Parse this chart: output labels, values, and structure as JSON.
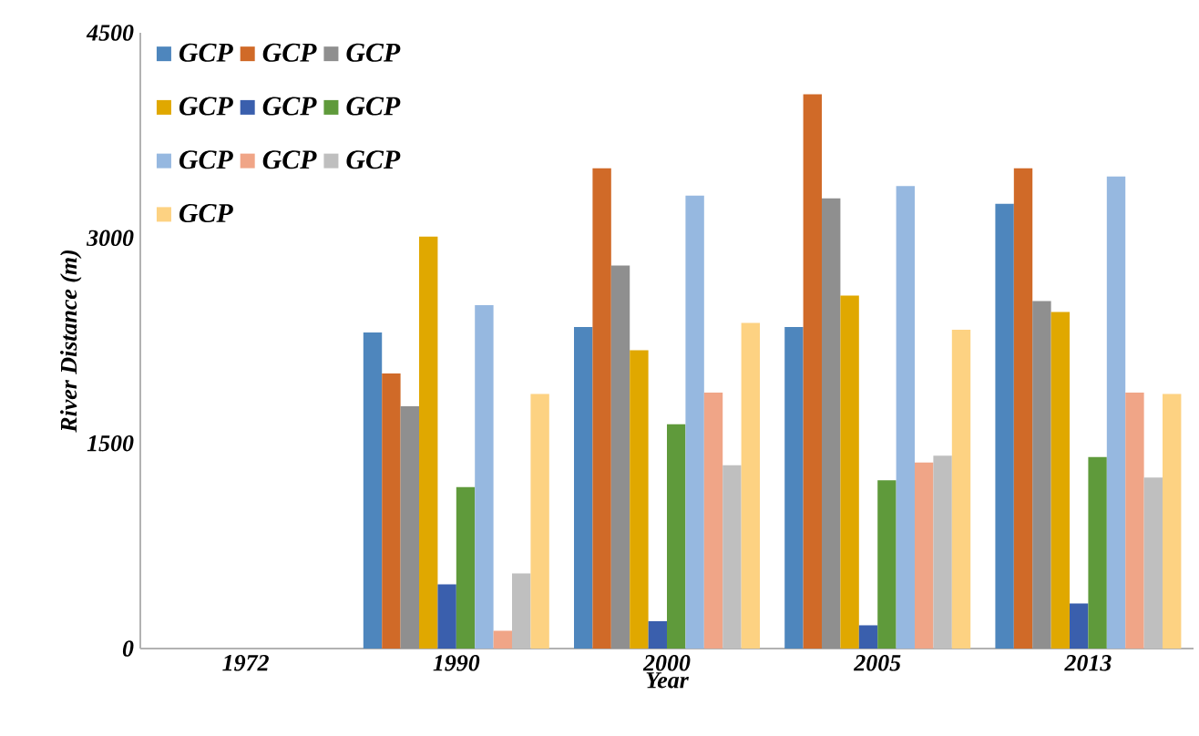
{
  "chart_data": {
    "type": "bar",
    "xlabel": "Year",
    "ylabel": "River Distance (m)",
    "categories": [
      "1972",
      "1990",
      "2000",
      "2005",
      "2013"
    ],
    "ylim": [
      0,
      4500
    ],
    "yticks": [
      0,
      1500,
      3000,
      4500
    ],
    "legend": "top left",
    "series": [
      {
        "name": "GCP",
        "color": "#4e86bd",
        "values": [
          null,
          2310,
          2350,
          2350,
          3250
        ]
      },
      {
        "name": "GCP",
        "color": "#d06a28",
        "values": [
          null,
          2010,
          3510,
          4050,
          3510
        ]
      },
      {
        "name": "GCP",
        "color": "#8f8f8f",
        "values": [
          null,
          1770,
          2800,
          3290,
          2540
        ]
      },
      {
        "name": "GCP",
        "color": "#e0a800",
        "values": [
          null,
          3010,
          2180,
          2580,
          2460
        ]
      },
      {
        "name": "GCP",
        "color": "#3a5fad",
        "values": [
          null,
          470,
          200,
          170,
          330
        ]
      },
      {
        "name": "GCP",
        "color": "#5f9a3b",
        "values": [
          null,
          1180,
          1640,
          1230,
          1400
        ]
      },
      {
        "name": "GCP",
        "color": "#96b8e0",
        "values": [
          null,
          2510,
          3310,
          3380,
          3450
        ]
      },
      {
        "name": "GCP",
        "color": "#f0a587",
        "values": [
          null,
          130,
          1870,
          1360,
          1870
        ]
      },
      {
        "name": "GCP",
        "color": "#bfbfbf",
        "values": [
          null,
          550,
          1340,
          1410,
          1250
        ]
      },
      {
        "name": "GCP",
        "color": "#fdd282",
        "values": [
          null,
          1860,
          2380,
          2330,
          1860
        ]
      }
    ]
  }
}
